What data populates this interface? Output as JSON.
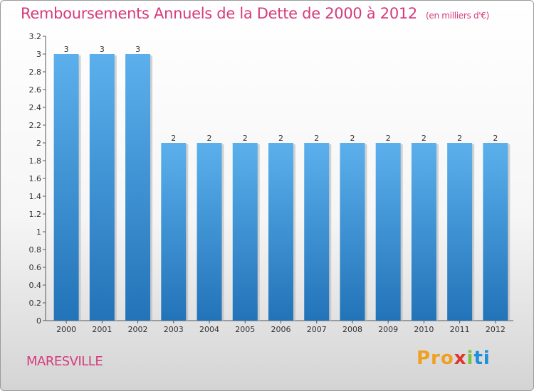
{
  "title": "Remboursements Annuels de la Dette de 2000 à 2012",
  "unit": "(en milliers d'€)",
  "commune": "MARESVILLE",
  "logo": {
    "p1": "Pro",
    "p2": "x",
    "p3": "i",
    "p4": "ti"
  },
  "chart_data": {
    "type": "bar",
    "categories": [
      "2000",
      "2001",
      "2002",
      "2003",
      "2004",
      "2005",
      "2006",
      "2007",
      "2008",
      "2009",
      "2010",
      "2011",
      "2012"
    ],
    "values": [
      3,
      3,
      3,
      2,
      2,
      2,
      2,
      2,
      2,
      2,
      2,
      2,
      2
    ],
    "ylim": [
      0,
      3.2
    ],
    "yticks": [
      "0",
      "0.2",
      "0.4",
      "0.6",
      "0.8",
      "1",
      "1.2",
      "1.4",
      "1.6",
      "1.8",
      "2",
      "2.2",
      "2.4",
      "2.6",
      "2.8",
      "3",
      "3.2"
    ],
    "grid": false,
    "bar_color": "#3a8fd8"
  }
}
